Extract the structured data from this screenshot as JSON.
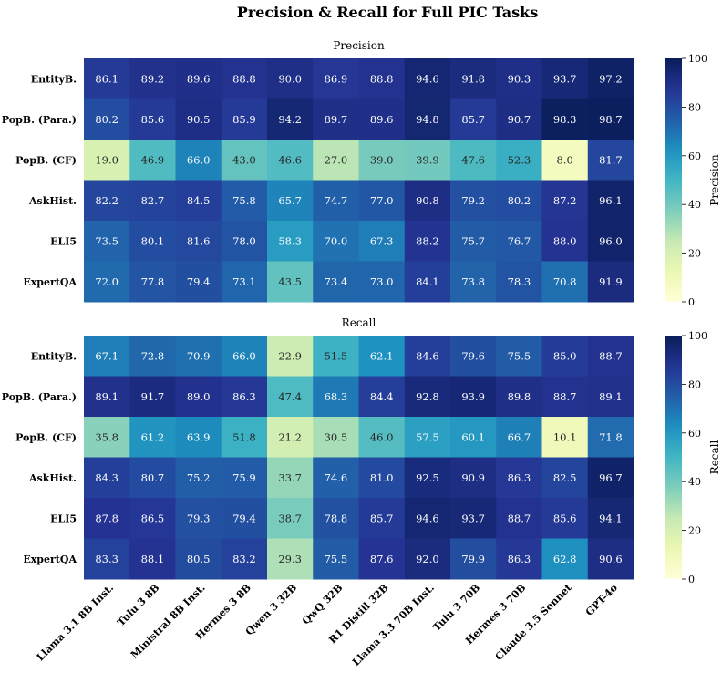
{
  "chart_data": {
    "type": "heatmap",
    "title": "Precision & Recall for Full PIC Tasks",
    "columns": [
      "Llama 3.1 8B Inst.",
      "Tulu 3 8B",
      "Ministral 8B Inst.",
      "Hermes 3 8B",
      "Qwen 3 32B",
      "QwQ 32B",
      "R1 Distill 32B",
      "Llama 3.3 70B Inst.",
      "Tulu 3 70B",
      "Hermes 3 70B",
      "Claude 3.5 Sonnet",
      "GPT-4o"
    ],
    "rows": [
      "EntityB.",
      "PopB. (Para.)",
      "PopB. (CF)",
      "AskHist.",
      "ELI5",
      "ExpertQA"
    ],
    "colormap": "YlGnBu",
    "vmin": 0,
    "vmax": 100,
    "colorbar_ticks": [
      0,
      20,
      40,
      60,
      80,
      100
    ],
    "panels": [
      {
        "title": "Precision",
        "colorbar_label": "Precision",
        "values": [
          [
            86.1,
            89.2,
            89.6,
            88.8,
            90.0,
            86.9,
            88.8,
            94.6,
            91.8,
            90.3,
            93.7,
            97.2
          ],
          [
            80.2,
            85.6,
            90.5,
            85.9,
            94.2,
            89.7,
            89.6,
            94.8,
            85.7,
            90.7,
            98.3,
            98.7
          ],
          [
            19.0,
            46.9,
            66.0,
            43.0,
            46.6,
            27.0,
            39.0,
            39.9,
            47.6,
            52.3,
            8.0,
            81.7
          ],
          [
            82.2,
            82.7,
            84.5,
            75.8,
            65.7,
            74.7,
            77.0,
            90.8,
            79.2,
            80.2,
            87.2,
            96.1
          ],
          [
            73.5,
            80.1,
            81.6,
            78.0,
            58.3,
            70.0,
            67.3,
            88.2,
            75.7,
            76.7,
            88.0,
            96.0
          ],
          [
            72.0,
            77.8,
            79.4,
            73.1,
            43.5,
            73.4,
            73.0,
            84.1,
            73.8,
            78.3,
            70.8,
            91.9
          ]
        ]
      },
      {
        "title": "Recall",
        "colorbar_label": "Recall",
        "values": [
          [
            67.1,
            72.8,
            70.9,
            66.0,
            22.9,
            51.5,
            62.1,
            84.6,
            79.6,
            75.5,
            85.0,
            88.7
          ],
          [
            89.1,
            91.7,
            89.0,
            86.3,
            47.4,
            68.3,
            84.4,
            92.8,
            93.9,
            89.8,
            88.7,
            89.1
          ],
          [
            35.8,
            61.2,
            63.9,
            51.8,
            21.2,
            30.5,
            46.0,
            57.5,
            60.1,
            66.7,
            10.1,
            71.8
          ],
          [
            84.3,
            80.7,
            75.2,
            75.9,
            33.7,
            74.6,
            81.0,
            92.5,
            90.9,
            86.3,
            82.5,
            96.7
          ],
          [
            87.8,
            86.5,
            79.3,
            79.4,
            38.7,
            78.8,
            85.7,
            94.6,
            93.7,
            88.7,
            85.6,
            94.1
          ],
          [
            83.3,
            88.1,
            80.5,
            83.2,
            29.3,
            75.5,
            87.6,
            92.0,
            79.9,
            86.3,
            62.8,
            90.6
          ]
        ]
      }
    ]
  }
}
